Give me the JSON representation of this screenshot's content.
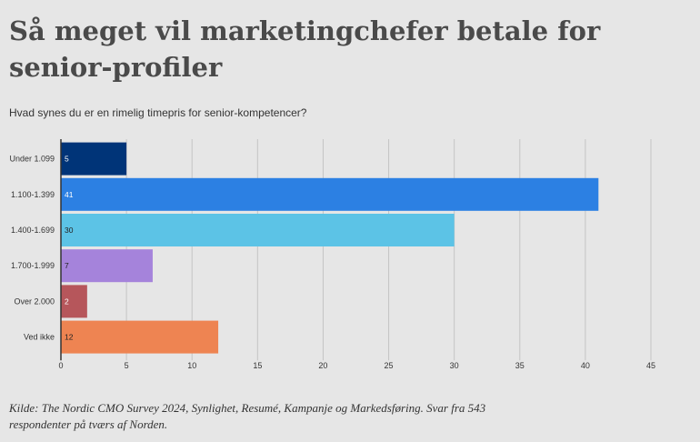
{
  "title": "Så meget vil marketingchefer betale for senior-profiler",
  "subtitle": "Hvad synes du er en rimelig timepris for senior-kompetencer?",
  "footer": "Kilde: The Nordic CMO Survey 2024, Synlighet, Resumé, Kampanje og Markedsføring. Svar fra 543 respondenter på tværs af Norden.",
  "chart_data": {
    "type": "bar",
    "orientation": "horizontal",
    "categories": [
      "Under 1.099",
      "1.100-1.399",
      "1.400-1.699",
      "1.700-1.999",
      "Over 2.000",
      "Ved ikke"
    ],
    "values": [
      5,
      41,
      30,
      7,
      2,
      12
    ],
    "colors": [
      "#003478",
      "#2c80e3",
      "#5cc3e6",
      "#a583db",
      "#b6565b",
      "#ee8452"
    ],
    "label_colors": [
      "#ffffff",
      "#ffffff",
      "#222222",
      "#222222",
      "#ffffff",
      "#222222"
    ],
    "xlim": [
      0,
      45
    ],
    "xticks": [
      0,
      5,
      10,
      15,
      20,
      25,
      30,
      35,
      40,
      45
    ],
    "grid": true,
    "xlabel": "",
    "ylabel": ""
  }
}
